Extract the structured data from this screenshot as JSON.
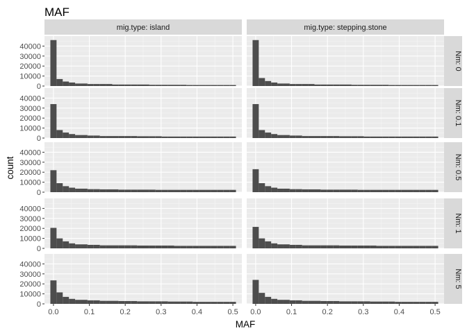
{
  "chart_data": {
    "type": "bar",
    "title": "MAF",
    "xlabel": "MAF",
    "ylabel": "count",
    "xlim": [
      -0.025,
      0.525
    ],
    "ylim": [
      0,
      50000
    ],
    "x_ticks": [
      0.0,
      0.1,
      0.2,
      0.3,
      0.4,
      0.5
    ],
    "x_tick_labels": [
      "0.0",
      "0.1",
      "0.2",
      "0.3",
      "0.4",
      "0.5"
    ],
    "y_ticks": [
      0,
      10000,
      20000,
      30000,
      40000
    ],
    "y_tick_labels": [
      "0",
      "10000",
      "20000",
      "30000",
      "40000"
    ],
    "grid": true,
    "bin_width": 0.01724,
    "bin_starts": [
      -0.00862,
      0.00862,
      0.02586,
      0.0431,
      0.06034,
      0.07759,
      0.09483,
      0.11207,
      0.12931,
      0.14655,
      0.16379,
      0.18103,
      0.19828,
      0.21552,
      0.23276,
      0.25,
      0.26724,
      0.28448,
      0.30172,
      0.31897,
      0.33621,
      0.35345,
      0.37069,
      0.38793,
      0.40517,
      0.42241,
      0.43966,
      0.4569,
      0.47414,
      0.49138
    ],
    "col_facet_labels": [
      "mig.type: island",
      "mig.type: stepping.stone"
    ],
    "row_facet_labels": [
      "Nm: 0",
      "Nm: 0.1",
      "Nm: 0.5",
      "Nm: 1",
      "Nm: 5"
    ],
    "panels": [
      {
        "col": "island",
        "row": "0",
        "counts": [
          46000,
          7000,
          4500,
          3500,
          2500,
          2500,
          2000,
          2000,
          2000,
          2000,
          1500,
          1500,
          1500,
          1500,
          1500,
          1500,
          1200,
          1200,
          1200,
          1200,
          1200,
          1200,
          1000,
          1000,
          1000,
          1000,
          1000,
          1000,
          1000,
          1000
        ]
      },
      {
        "col": "stepping.stone",
        "row": "0",
        "counts": [
          46000,
          8000,
          5000,
          3500,
          2500,
          2500,
          2000,
          2000,
          2000,
          2000,
          1500,
          1500,
          1500,
          1500,
          1500,
          1500,
          1200,
          1200,
          1200,
          1200,
          1200,
          1200,
          1000,
          1000,
          1000,
          1000,
          1000,
          1000,
          1000,
          1000
        ]
      },
      {
        "col": "island",
        "row": "0.1",
        "counts": [
          34000,
          8000,
          5500,
          4000,
          3000,
          3000,
          2500,
          2500,
          2000,
          2000,
          2000,
          2000,
          2000,
          2000,
          1800,
          1800,
          1800,
          1800,
          1500,
          1500,
          1500,
          1500,
          1500,
          1500,
          1500,
          1500,
          1500,
          1500,
          1500,
          1500
        ]
      },
      {
        "col": "stepping.stone",
        "row": "0.1",
        "counts": [
          34000,
          8000,
          5500,
          4000,
          3000,
          3000,
          2500,
          2500,
          2000,
          2000,
          2000,
          2000,
          2000,
          2000,
          1800,
          1800,
          1800,
          1800,
          1500,
          1500,
          1500,
          1500,
          1500,
          1500,
          1500,
          1500,
          1500,
          1500,
          1500,
          1500
        ]
      },
      {
        "col": "island",
        "row": "0.5",
        "counts": [
          22000,
          9000,
          6000,
          4500,
          3500,
          3500,
          3000,
          3000,
          2800,
          2800,
          2800,
          2500,
          2500,
          2500,
          2500,
          2500,
          2500,
          2300,
          2300,
          2300,
          2300,
          2300,
          2300,
          2300,
          2300,
          2300,
          2300,
          2300,
          2300,
          2300
        ]
      },
      {
        "col": "stepping.stone",
        "row": "0.5",
        "counts": [
          23000,
          9000,
          6000,
          4500,
          3500,
          3500,
          3000,
          3000,
          2800,
          2800,
          2800,
          2500,
          2500,
          2500,
          2500,
          2500,
          2500,
          2300,
          2300,
          2300,
          2300,
          2300,
          2300,
          2300,
          2300,
          2300,
          2300,
          2300,
          2300,
          2300
        ]
      },
      {
        "col": "island",
        "row": "1",
        "counts": [
          20500,
          10000,
          7000,
          5000,
          4000,
          4000,
          3500,
          3500,
          3000,
          3000,
          3000,
          3000,
          3000,
          3000,
          2800,
          2800,
          2800,
          2800,
          2800,
          2800,
          2500,
          2500,
          2500,
          2500,
          2500,
          2500,
          2500,
          2500,
          2500,
          2500
        ]
      },
      {
        "col": "stepping.stone",
        "row": "1",
        "counts": [
          21500,
          10000,
          7000,
          5000,
          4000,
          4000,
          3500,
          3500,
          3000,
          3000,
          3000,
          3000,
          3000,
          3000,
          2800,
          2800,
          2800,
          2800,
          2800,
          2800,
          2500,
          2500,
          2500,
          2500,
          2500,
          2500,
          2500,
          2500,
          2500,
          2500
        ]
      },
      {
        "col": "island",
        "row": "5",
        "counts": [
          23500,
          11500,
          7000,
          5000,
          4000,
          4000,
          3500,
          3500,
          3000,
          3000,
          3000,
          2800,
          2800,
          2800,
          2500,
          2500,
          2500,
          2500,
          2500,
          2300,
          2300,
          2300,
          2300,
          2000,
          2000,
          2000,
          2000,
          2000,
          2000,
          2000
        ]
      },
      {
        "col": "stepping.stone",
        "row": "5",
        "counts": [
          24000,
          11000,
          7000,
          5000,
          4000,
          4000,
          3500,
          3500,
          3000,
          3000,
          3000,
          2800,
          2800,
          2800,
          2500,
          2500,
          2500,
          2500,
          2500,
          2300,
          2300,
          2300,
          2300,
          2000,
          2000,
          2000,
          2000,
          2000,
          2000,
          2000
        ]
      }
    ]
  }
}
